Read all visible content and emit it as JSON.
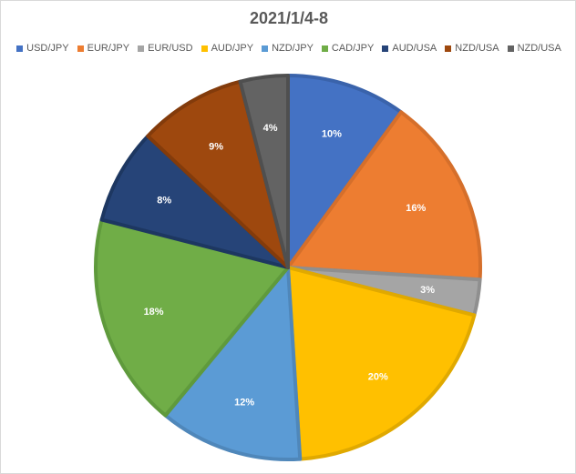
{
  "chart_data": {
    "type": "pie",
    "title": "2021/1/4-8",
    "legend_position": "top",
    "categories": [
      "USD/JPY",
      "EUR/JPY",
      "EUR/USD",
      "AUD/JPY",
      "NZD/JPY",
      "CAD/JPY",
      "AUD/USA",
      "NZD/USA",
      "NZD/USA"
    ],
    "values": [
      10,
      16,
      3,
      20,
      12,
      18,
      8,
      9,
      4
    ],
    "data_labels": [
      "10%",
      "16%",
      "3%",
      "20%",
      "12%",
      "18%",
      "8%",
      "9%",
      "4%"
    ],
    "colors": [
      "#4472c4",
      "#ed7d31",
      "#a5a5a5",
      "#ffc000",
      "#5b9bd5",
      "#70ad47",
      "#264478",
      "#9e480e",
      "#636363"
    ],
    "border_colors": [
      "#3a63ab",
      "#d56f2b",
      "#8f8f8f",
      "#e0a900",
      "#4f87ba",
      "#5f9a3c",
      "#1d3761",
      "#833b0b",
      "#4f4f4f"
    ]
  }
}
